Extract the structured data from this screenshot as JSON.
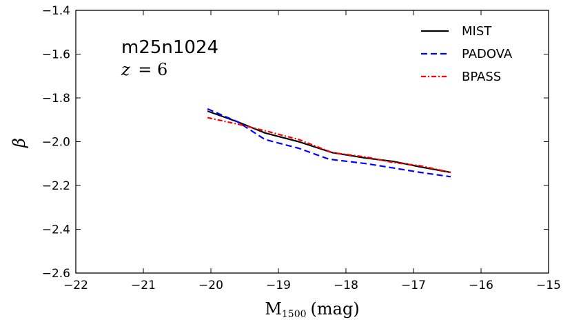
{
  "chart_data": {
    "type": "line",
    "title": "",
    "annotation": "m25n1024",
    "annotation_z_var": "z",
    "annotation_z_eq": "= 6",
    "xlabel_main": "M",
    "xlabel_sub": "1500",
    "xlabel_unit": "(mag)",
    "ylabel": "β",
    "xlim": [
      -22,
      -15
    ],
    "ylim": [
      -2.6,
      -1.4
    ],
    "xticks": [
      -22,
      -21,
      -20,
      -19,
      -18,
      -17,
      -16,
      -15
    ],
    "xtick_labels": [
      "−22",
      "−21",
      "−20",
      "−19",
      "−18",
      "−17",
      "−16",
      "−15"
    ],
    "yticks": [
      -2.6,
      -2.4,
      -2.2,
      -2.0,
      -1.8,
      -1.6,
      -1.4
    ],
    "ytick_labels": [
      "−2.6",
      "−2.4",
      "−2.2",
      "−2.0",
      "−1.8",
      "−1.6",
      "−1.4"
    ],
    "legend_position": "top-right",
    "series": [
      {
        "name": "MIST",
        "color": "#000000",
        "dash": "solid",
        "x": [
          -20.05,
          -19.6,
          -19.2,
          -18.7,
          -18.2,
          -17.7,
          -17.3,
          -16.9,
          -16.45
        ],
        "y": [
          -1.86,
          -1.91,
          -1.96,
          -2.0,
          -2.05,
          -2.075,
          -2.09,
          -2.115,
          -2.14
        ]
      },
      {
        "name": "PADOVA",
        "color": "#0000ff",
        "dash": "dashed",
        "x": [
          -20.05,
          -19.6,
          -19.2,
          -18.7,
          -18.25,
          -17.7,
          -17.3,
          -16.9,
          -16.45
        ],
        "y": [
          -1.85,
          -1.91,
          -1.99,
          -2.03,
          -2.08,
          -2.1,
          -2.12,
          -2.14,
          -2.16
        ]
      },
      {
        "name": "BPASS",
        "color": "#ff0000",
        "dash": "dashdot",
        "x": [
          -20.05,
          -19.6,
          -19.2,
          -18.7,
          -18.2,
          -17.7,
          -17.3,
          -16.9,
          -16.45
        ],
        "y": [
          -1.89,
          -1.92,
          -1.95,
          -1.99,
          -2.05,
          -2.07,
          -2.095,
          -2.11,
          -2.14
        ]
      }
    ]
  }
}
